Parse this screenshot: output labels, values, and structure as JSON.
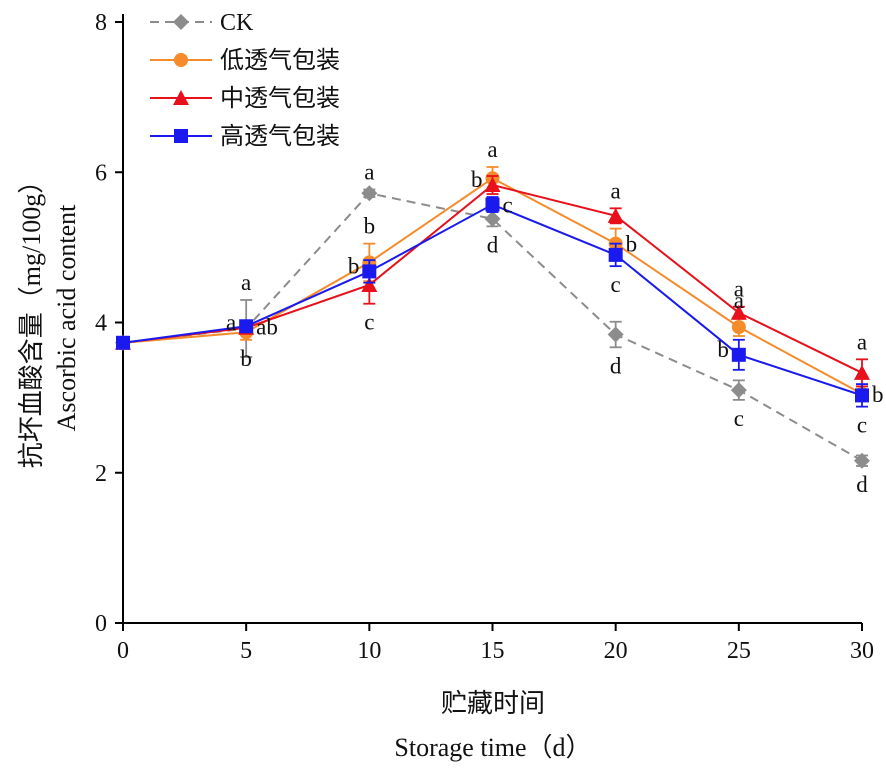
{
  "chart_data": {
    "type": "line",
    "title": "",
    "xlabel": [
      "贮藏时间",
      "Storage time（d）"
    ],
    "ylabel": "抗坏血酸含量（mg/100g）",
    "ylabel_en": "Ascorbic acid content",
    "xlim": [
      0,
      30
    ],
    "ylim": [
      0,
      8
    ],
    "x_ticks": [
      0,
      5,
      10,
      15,
      20,
      25,
      30
    ],
    "y_ticks": [
      0,
      2,
      4,
      6,
      8
    ],
    "grid": false,
    "legend_position": "top-left",
    "x": [
      0,
      5,
      10,
      15,
      20,
      25,
      30
    ],
    "series": [
      {
        "name": "CK",
        "color": "#8c8c8c",
        "marker": "diamond",
        "dashed": true,
        "values": [
          3.73,
          3.92,
          5.72,
          5.38,
          3.84,
          3.1,
          2.16
        ],
        "errors": [
          0.04,
          0.38,
          0.05,
          0.1,
          0.17,
          0.13,
          0.07
        ],
        "labels": [
          "",
          "a",
          "a",
          "d",
          "d",
          "c",
          "d"
        ],
        "label_pos": [
          "",
          "above",
          "above",
          "below",
          "below",
          "below",
          "below"
        ]
      },
      {
        "name": "低透气包装",
        "color": "#f58b2b",
        "marker": "circle",
        "dashed": false,
        "values": [
          3.73,
          3.87,
          4.8,
          5.92,
          5.05,
          3.94,
          3.05
        ],
        "errors": [
          0.04,
          0.1,
          0.25,
          0.15,
          0.2,
          0.12,
          0.1
        ],
        "labels": [
          "",
          "b",
          "b",
          "a",
          "b",
          "a",
          "b"
        ],
        "label_pos": [
          "",
          "below",
          "above",
          "above",
          "right",
          "above",
          "right"
        ]
      },
      {
        "name": "中透气包装",
        "color": "#e8101a",
        "marker": "triangle",
        "dashed": false,
        "values": [
          3.73,
          3.93,
          4.5,
          5.83,
          5.42,
          4.13,
          3.33
        ],
        "errors": [
          0.04,
          0.06,
          0.25,
          0.12,
          0.1,
          0.08,
          0.18
        ],
        "labels": [
          "",
          "a",
          "c",
          "b",
          "a",
          "a",
          "a"
        ],
        "label_pos": [
          "",
          "left",
          "below",
          "left",
          "above",
          "above",
          "above"
        ]
      },
      {
        "name": "高透气包装",
        "color": "#1a1aef",
        "marker": "square",
        "dashed": false,
        "values": [
          3.73,
          3.95,
          4.68,
          5.57,
          4.9,
          3.57,
          3.03
        ],
        "errors": [
          0.04,
          0.06,
          0.15,
          0.1,
          0.15,
          0.2,
          0.15
        ],
        "labels": [
          "",
          "ab",
          "b",
          "c",
          "c",
          "b",
          "c"
        ],
        "label_pos": [
          "",
          "right",
          "left",
          "right",
          "below",
          "left",
          "below"
        ]
      }
    ]
  }
}
